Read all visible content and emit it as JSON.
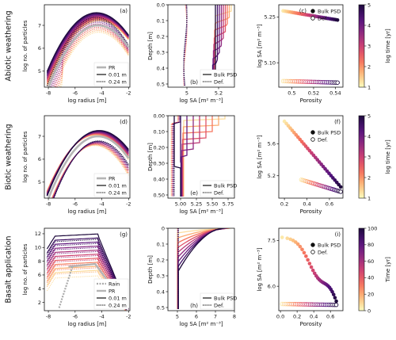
{
  "chart_data": [
    {
      "id": "a",
      "type": "line",
      "panel_label": "(a)",
      "xlabel": "log radius [m]",
      "ylabel": "log no. of particles",
      "xlim": [
        -8.3,
        -1.9
      ],
      "ylim": [
        4.3,
        7.9
      ],
      "xticks": [
        -8,
        -6,
        -4,
        -2
      ],
      "yticks": [
        5,
        6,
        7
      ],
      "legend": [
        "PR",
        "0.01 m",
        "0.24 m"
      ],
      "series_summary": "Bell-shaped size distributions peaking near log radius -4.3; curves shift over time (colour = log time), solid = 0.01 m, dotted = 0.24 m"
    },
    {
      "id": "b",
      "type": "line",
      "panel_label": "(b)",
      "xlabel": "log SA [m² m⁻³]",
      "ylabel": "Depth [m]",
      "xlim": [
        4.88,
        5.3
      ],
      "ylim": [
        0.52,
        0
      ],
      "xticks": [
        5.0,
        5.2
      ],
      "yticks": [
        0,
        0.1,
        0.2,
        0.3,
        0.4,
        0.5
      ],
      "legend": [
        "Bulk PSD",
        "Def."
      ]
    },
    {
      "id": "c",
      "type": "scatter",
      "panel_label": "(c)",
      "xlabel": "Porosity",
      "ylabel": "log SA [m² m⁻³]",
      "xlim": [
        0.488,
        0.547
      ],
      "ylim": [
        5.02,
        5.29
      ],
      "xticks": [
        0.5,
        0.52,
        0.54
      ],
      "yticks": [
        5.1,
        5.25
      ],
      "legend": [
        "Bulk PSD",
        "Def."
      ],
      "colorbar": {
        "label": "log time [yr]",
        "range": [
          1,
          5
        ],
        "ticks": [
          1,
          2,
          3,
          4,
          5
        ]
      }
    },
    {
      "id": "d",
      "type": "line",
      "panel_label": "(d)",
      "xlabel": "log radius [m]",
      "ylabel": "log no. of particles",
      "xlim": [
        -8.3,
        -1.9
      ],
      "ylim": [
        4.3,
        7.9
      ],
      "xticks": [
        -8,
        -6,
        -4,
        -2
      ],
      "yticks": [
        5,
        6,
        7
      ],
      "legend": [
        "PR",
        "0.01 m",
        "0.24 m"
      ]
    },
    {
      "id": "e",
      "type": "line",
      "panel_label": "(e)",
      "xlabel": "log SA [m² m⁻³]",
      "ylabel": "Depth [m]",
      "xlim": [
        4.8,
        5.85
      ],
      "ylim": [
        0.52,
        0
      ],
      "xticks": [
        5.0,
        5.25,
        5.5,
        5.75
      ],
      "yticks": [
        0,
        0.1,
        0.2,
        0.3,
        0.4,
        0.5
      ],
      "legend": [
        "Bulk PSD",
        "Def."
      ]
    },
    {
      "id": "f",
      "type": "scatter",
      "panel_label": "(f)",
      "xlabel": "Porosity",
      "ylabel": "log SA [m² m⁻³]",
      "xlim": [
        0.15,
        0.72
      ],
      "ylim": [
        4.92,
        5.95
      ],
      "xticks": [
        0.2,
        0.4,
        0.6
      ],
      "yticks": [
        5.2,
        5.6
      ],
      "legend": [
        "Bulk PSD",
        "Def."
      ],
      "colorbar": {
        "label": "log time [yr]",
        "range": [
          1,
          5
        ],
        "ticks": [
          1,
          2,
          3,
          4,
          5
        ]
      }
    },
    {
      "id": "g",
      "type": "line",
      "panel_label": "(g)",
      "xlabel": "log radius [m]",
      "ylabel": "log no. of particles",
      "xlim": [
        -8.3,
        -1.9
      ],
      "ylim": [
        0.8,
        12.8
      ],
      "xticks": [
        -8,
        -6,
        -4,
        -2
      ],
      "yticks": [
        2,
        4,
        6,
        8,
        10,
        12
      ],
      "legend": [
        "Rain",
        "PR",
        "0.01 m",
        "0.24 m"
      ]
    },
    {
      "id": "h",
      "type": "line",
      "panel_label": "(h)",
      "xlabel": "log SA [m² m⁻³]",
      "ylabel": "Depth [m]",
      "xlim": [
        4.5,
        8
      ],
      "ylim": [
        0.52,
        0
      ],
      "xticks": [
        5,
        6,
        7,
        8
      ],
      "yticks": [
        0,
        0.1,
        0.2,
        0.3,
        0.4,
        0.5
      ],
      "legend": [
        "Bulk PSD",
        "Def."
      ]
    },
    {
      "id": "i",
      "type": "scatter",
      "panel_label": "(i)",
      "xlabel": "Porosity",
      "ylabel": "log SA [m² m⁻³]",
      "xlim": [
        -0.02,
        0.75
      ],
      "ylim": [
        5.2,
        7.9
      ],
      "xticks": [
        0.0,
        0.2,
        0.4,
        0.6
      ],
      "yticks": [
        6.0,
        7.5
      ],
      "legend": [
        "Bulk PSD",
        "Def."
      ],
      "colorbar": {
        "label": "Time [yr]",
        "range": [
          0,
          100
        ],
        "ticks": [
          0,
          20,
          40,
          60,
          80,
          100
        ]
      }
    }
  ],
  "row_labels": [
    "Abiotic weathering",
    "Biotic weathering",
    "Basalt application"
  ]
}
